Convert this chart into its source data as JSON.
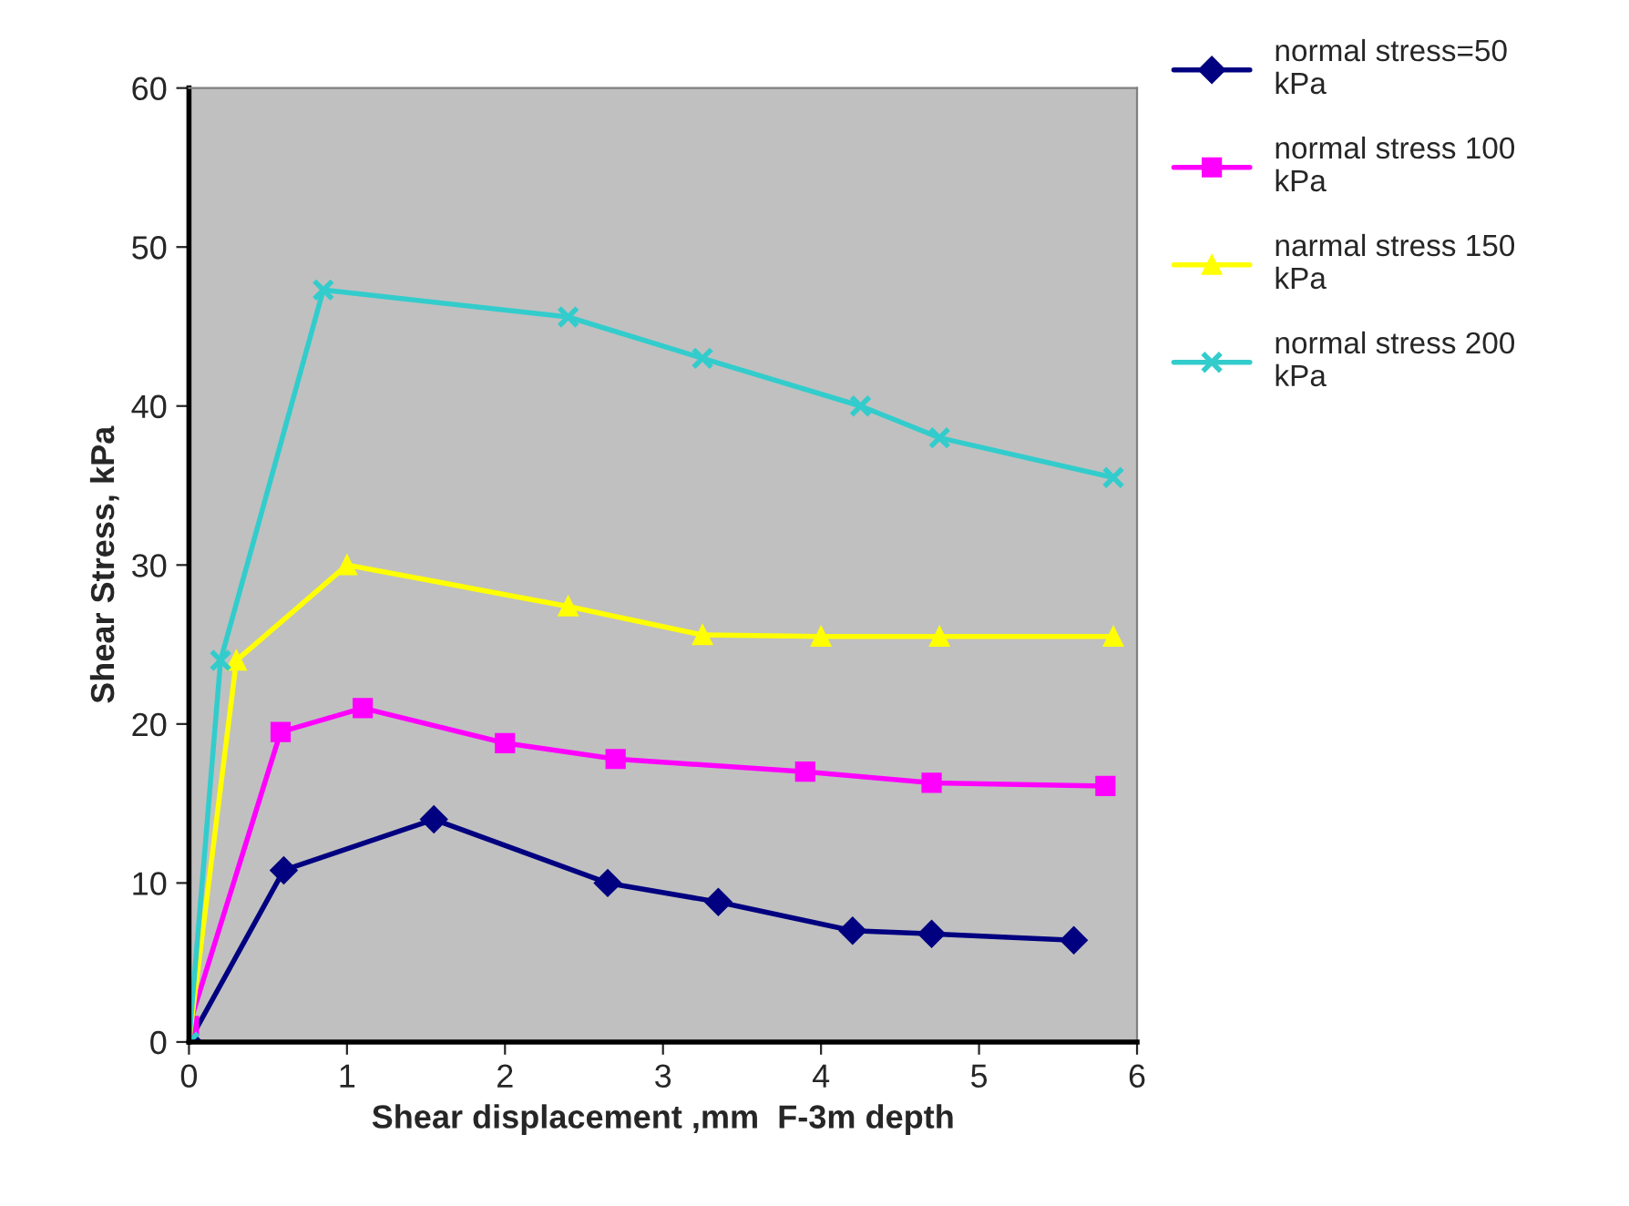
{
  "chart_data": {
    "type": "line",
    "xlabel": "Shear displacement ,mm  F-3m depth",
    "ylabel": "Shear Stress, kPa",
    "xlim": [
      0,
      6
    ],
    "xticks": [
      0,
      1,
      2,
      3,
      4,
      5,
      6
    ],
    "ylim": [
      0,
      60
    ],
    "yticks": [
      0,
      10,
      20,
      30,
      40,
      50,
      60
    ],
    "grid": false,
    "legend": "right",
    "line_style": "solid",
    "series": [
      {
        "name": "normal stress=50\nkPa",
        "color": "#000080",
        "marker": "diamond",
        "x": [
          0,
          0.6,
          1.55,
          2.65,
          3.35,
          4.2,
          4.7,
          5.6
        ],
        "values": [
          0,
          10.8,
          14,
          10,
          8.8,
          7,
          6.8,
          6.4
        ]
      },
      {
        "name": "normal stress 100\nkPa",
        "color": "#ff00ff",
        "marker": "square",
        "x": [
          0,
          0.58,
          1.1,
          2,
          2.7,
          3.9,
          4.7,
          5.8
        ],
        "values": [
          1,
          19.5,
          21,
          18.8,
          17.8,
          17,
          16.3,
          16.1
        ]
      },
      {
        "name": "narmal stress 150\nkPa",
        "color": "#ffff00",
        "marker": "triangle",
        "x": [
          0,
          0.3,
          1,
          2.4,
          3.25,
          4,
          4.75,
          5.85
        ],
        "values": [
          0,
          24,
          30,
          27.4,
          25.6,
          25.5,
          25.5,
          25.5
        ]
      },
      {
        "name": "normal stress 200\nkPa",
        "color": "#33cccc",
        "marker": "cross",
        "x": [
          0,
          0.2,
          0.85,
          2.4,
          3.25,
          4.25,
          4.75,
          5.85
        ],
        "values": [
          0,
          24,
          47.3,
          45.6,
          43,
          40,
          38,
          35.5
        ]
      }
    ]
  }
}
